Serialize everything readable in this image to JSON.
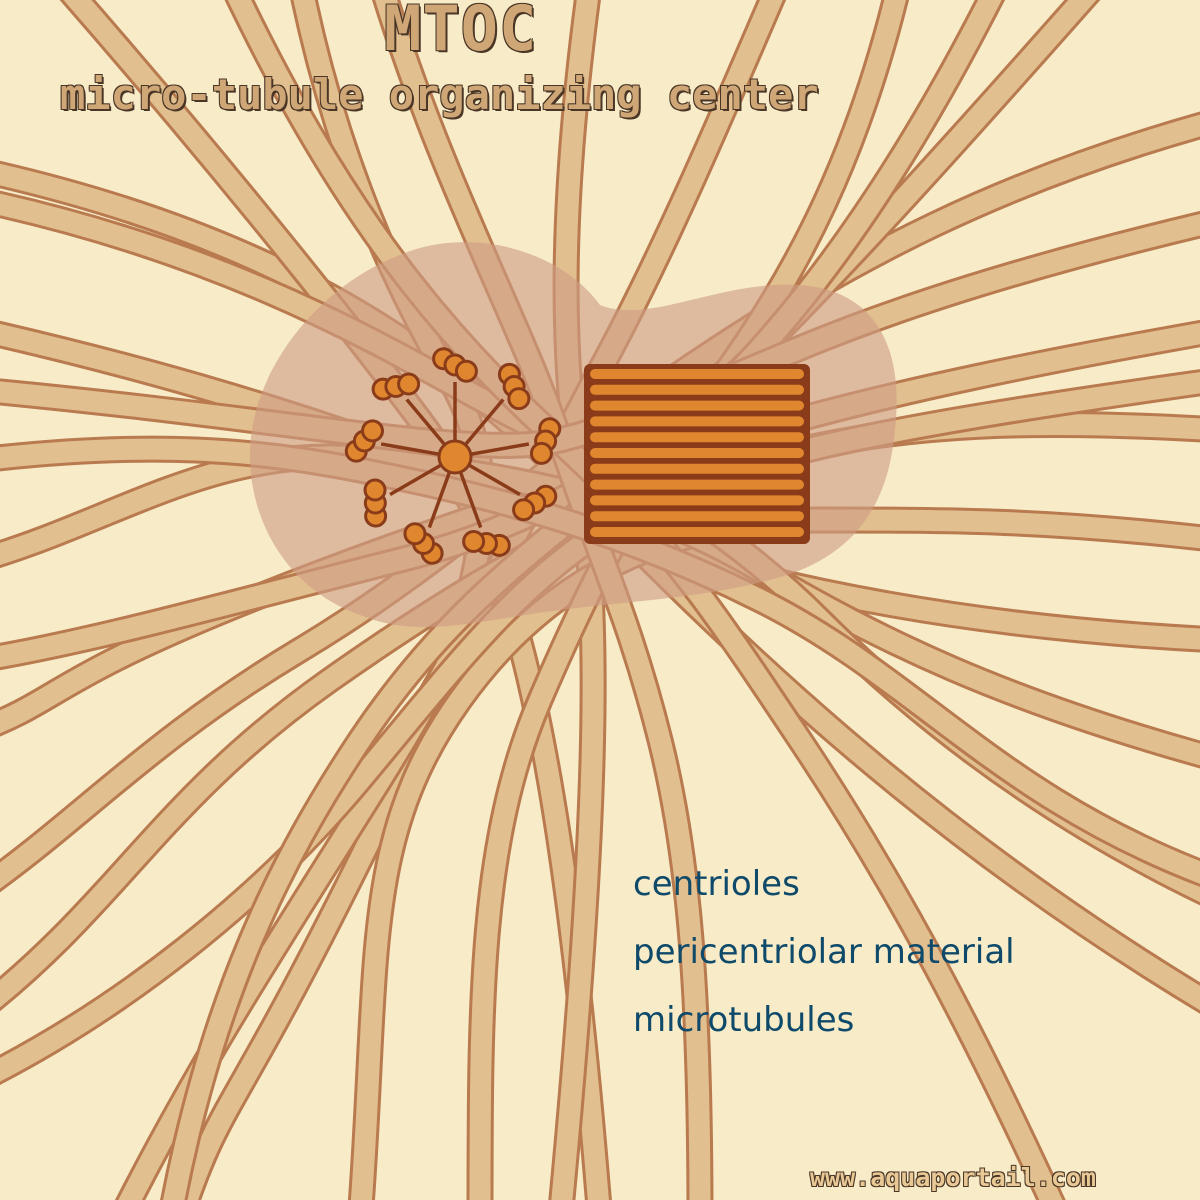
{
  "title": "MTOC",
  "subtitle": "micro-tubule organizing center",
  "legend": {
    "items": [
      "centrioles",
      "pericentriolar material",
      "microtubules"
    ]
  },
  "credit": "www.aquaportail.com",
  "colors": {
    "background": "#f7ebc8",
    "microtubule_fill": "#e2bf8e",
    "microtubule_outline": "#b87a4e",
    "pericentriolar_material": "#cf9c84",
    "centriole_fill": "#e0862e",
    "centriole_outline": "#8a3c1a",
    "legend_text": "#0f4a6a"
  }
}
